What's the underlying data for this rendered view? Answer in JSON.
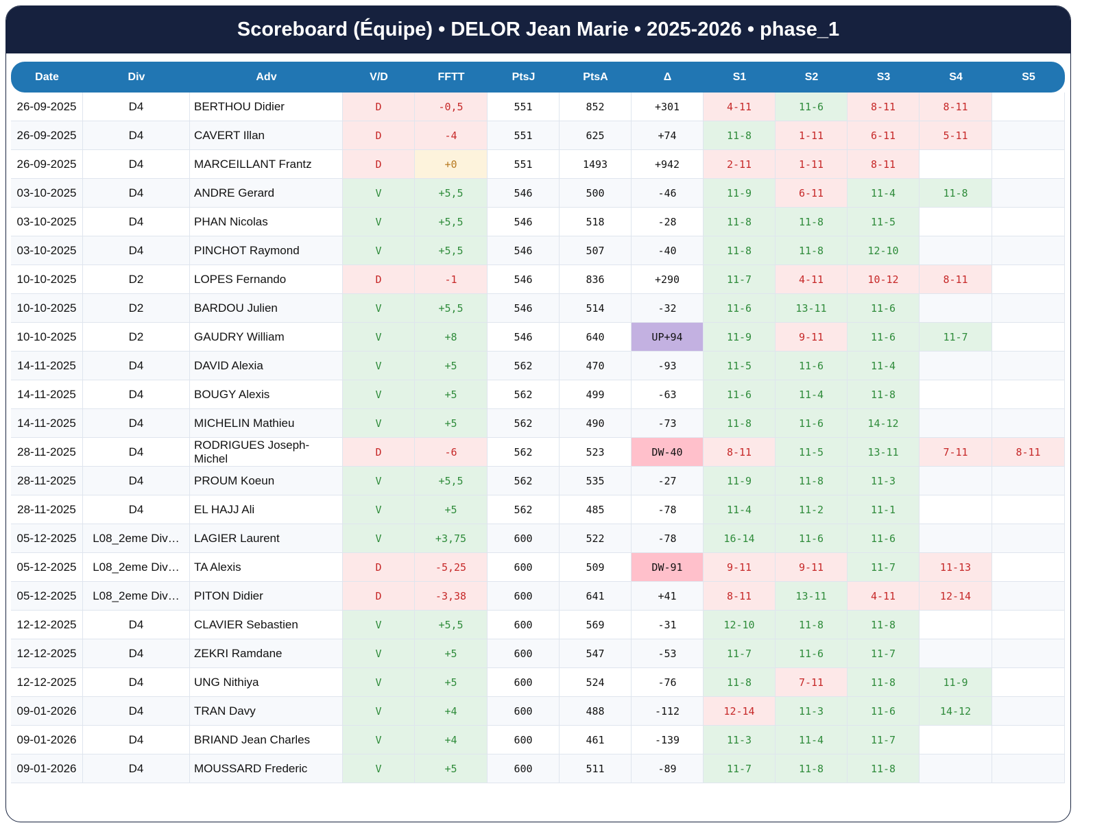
{
  "title": "Scoreboard (Équipe) • DELOR Jean Marie • 2025-2026 • phase_1",
  "columns": [
    "Date",
    "Div",
    "Adv",
    "V/D",
    "FFTT",
    "PtsJ",
    "PtsA",
    "Δ",
    "S1",
    "S2",
    "S3",
    "S4",
    "S5"
  ],
  "colors": {
    "header": "#16213e",
    "table_header": "#2176b3",
    "win": "#2e8b3a",
    "loss": "#c62828",
    "up": "#c3b1e1",
    "down": "#ffc0cb"
  },
  "rows": [
    [
      "26-09-2025",
      "D4",
      "BERTHOU Didier",
      "D",
      "-0,5",
      "551",
      "852",
      "+301",
      "4-11",
      "11-6",
      "8-11",
      "8-11",
      ""
    ],
    [
      "26-09-2025",
      "D4",
      "CAVERT Illan",
      "D",
      "-4",
      "551",
      "625",
      "+74",
      "11-8",
      "1-11",
      "6-11",
      "5-11",
      ""
    ],
    [
      "26-09-2025",
      "D4",
      "MARCEILLANT Frantz",
      "D",
      "+0",
      "551",
      "1493",
      "+942",
      "2-11",
      "1-11",
      "8-11",
      "",
      ""
    ],
    [
      "03-10-2025",
      "D4",
      "ANDRE Gerard",
      "V",
      "+5,5",
      "546",
      "500",
      "-46",
      "11-9",
      "6-11",
      "11-4",
      "11-8",
      ""
    ],
    [
      "03-10-2025",
      "D4",
      "PHAN Nicolas",
      "V",
      "+5,5",
      "546",
      "518",
      "-28",
      "11-8",
      "11-8",
      "11-5",
      "",
      ""
    ],
    [
      "03-10-2025",
      "D4",
      "PINCHOT Raymond",
      "V",
      "+5,5",
      "546",
      "507",
      "-40",
      "11-8",
      "11-8",
      "12-10",
      "",
      ""
    ],
    [
      "10-10-2025",
      "D2",
      "LOPES Fernando",
      "D",
      "-1",
      "546",
      "836",
      "+290",
      "11-7",
      "4-11",
      "10-12",
      "8-11",
      ""
    ],
    [
      "10-10-2025",
      "D2",
      "BARDOU Julien",
      "V",
      "+5,5",
      "546",
      "514",
      "-32",
      "11-6",
      "13-11",
      "11-6",
      "",
      ""
    ],
    [
      "10-10-2025",
      "D2",
      "GAUDRY William",
      "V",
      "+8",
      "546",
      "640",
      "UP+94",
      "11-9",
      "9-11",
      "11-6",
      "11-7",
      ""
    ],
    [
      "14-11-2025",
      "D4",
      "DAVID Alexia",
      "V",
      "+5",
      "562",
      "470",
      "-93",
      "11-5",
      "11-6",
      "11-4",
      "",
      ""
    ],
    [
      "14-11-2025",
      "D4",
      "BOUGY Alexis",
      "V",
      "+5",
      "562",
      "499",
      "-63",
      "11-6",
      "11-4",
      "11-8",
      "",
      ""
    ],
    [
      "14-11-2025",
      "D4",
      "MICHELIN Mathieu",
      "V",
      "+5",
      "562",
      "490",
      "-73",
      "11-8",
      "11-6",
      "14-12",
      "",
      ""
    ],
    [
      "28-11-2025",
      "D4",
      "RODRIGUES Joseph-Michel",
      "D",
      "-6",
      "562",
      "523",
      "DW-40",
      "8-11",
      "11-5",
      "13-11",
      "7-11",
      "8-11"
    ],
    [
      "28-11-2025",
      "D4",
      "PROUM Koeun",
      "V",
      "+5,5",
      "562",
      "535",
      "-27",
      "11-9",
      "11-8",
      "11-3",
      "",
      ""
    ],
    [
      "28-11-2025",
      "D4",
      "EL HAJJ Ali",
      "V",
      "+5",
      "562",
      "485",
      "-78",
      "11-4",
      "11-2",
      "11-1",
      "",
      ""
    ],
    [
      "05-12-2025",
      "L08_2eme Div…",
      "LAGIER Laurent",
      "V",
      "+3,75",
      "600",
      "522",
      "-78",
      "16-14",
      "11-6",
      "11-6",
      "",
      ""
    ],
    [
      "05-12-2025",
      "L08_2eme Div…",
      "TA Alexis",
      "D",
      "-5,25",
      "600",
      "509",
      "DW-91",
      "9-11",
      "9-11",
      "11-7",
      "11-13",
      ""
    ],
    [
      "05-12-2025",
      "L08_2eme Div…",
      "PITON Didier",
      "D",
      "-3,38",
      "600",
      "641",
      "+41",
      "8-11",
      "13-11",
      "4-11",
      "12-14",
      ""
    ],
    [
      "12-12-2025",
      "D4",
      "CLAVIER Sebastien",
      "V",
      "+5,5",
      "600",
      "569",
      "-31",
      "12-10",
      "11-8",
      "11-8",
      "",
      ""
    ],
    [
      "12-12-2025",
      "D4",
      "ZEKRI Ramdane",
      "V",
      "+5",
      "600",
      "547",
      "-53",
      "11-7",
      "11-6",
      "11-7",
      "",
      ""
    ],
    [
      "12-12-2025",
      "D4",
      "UNG Nithiya",
      "V",
      "+5",
      "600",
      "524",
      "-76",
      "11-8",
      "7-11",
      "11-8",
      "11-9",
      ""
    ],
    [
      "09-01-2026",
      "D4",
      "TRAN Davy",
      "V",
      "+4",
      "600",
      "488",
      "-112",
      "12-14",
      "11-3",
      "11-6",
      "14-12",
      ""
    ],
    [
      "09-01-2026",
      "D4",
      "BRIAND Jean Charles",
      "V",
      "+4",
      "600",
      "461",
      "-139",
      "11-3",
      "11-4",
      "11-7",
      "",
      ""
    ],
    [
      "09-01-2026",
      "D4",
      "MOUSSARD Frederic",
      "V",
      "+5",
      "600",
      "511",
      "-89",
      "11-7",
      "11-8",
      "11-8",
      "",
      ""
    ]
  ]
}
